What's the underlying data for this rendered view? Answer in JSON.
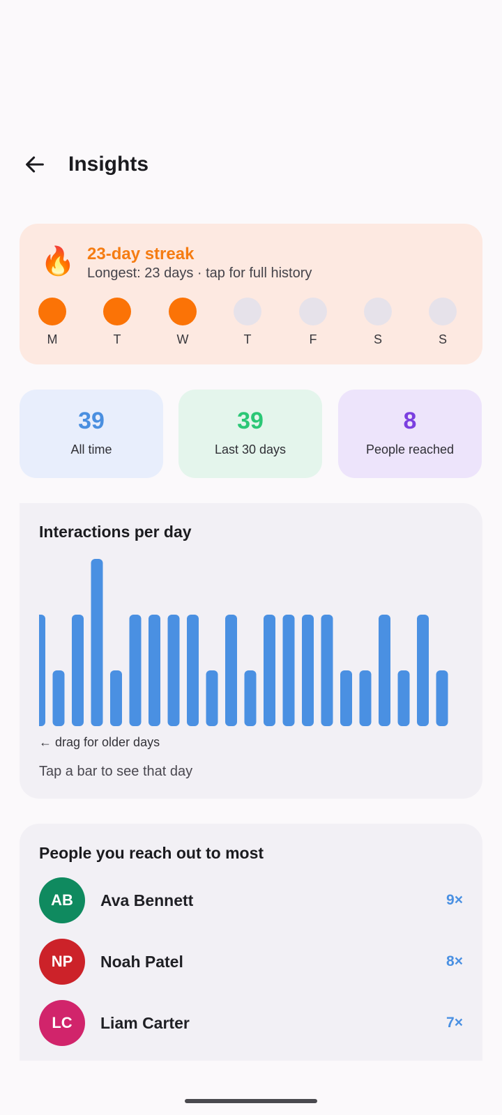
{
  "header": {
    "title": "Insights",
    "back_icon": "arrow-left-icon"
  },
  "streak": {
    "icon": "fire-icon",
    "emoji": "🔥",
    "title": "23-day streak",
    "subtitle": "Longest: 23 days · tap for full history",
    "days": [
      {
        "label": "M",
        "done": true
      },
      {
        "label": "T",
        "done": true
      },
      {
        "label": "W",
        "done": true
      },
      {
        "label": "T",
        "done": false
      },
      {
        "label": "F",
        "done": false
      },
      {
        "label": "S",
        "done": false
      },
      {
        "label": "S",
        "done": false
      }
    ],
    "colors": {
      "active": "#fb7306",
      "inactive": "#e6e2ea",
      "accent": "#f57c12",
      "background": "#fde9e1"
    }
  },
  "stats": [
    {
      "value": "39",
      "label": "All time",
      "color": "#4a8fe0",
      "bg": "#e8eefc"
    },
    {
      "value": "39",
      "label": "Last 30 days",
      "color": "#2bc776",
      "bg": "#e4f5ec"
    },
    {
      "value": "8",
      "label": "People reached",
      "color": "#7b3fe0",
      "bg": "#ede4fb"
    }
  ],
  "chart": {
    "title": "Interactions per day",
    "drag_hint": "← drag for older days",
    "tap_hint": "Tap a bar to see that day"
  },
  "chart_data": {
    "type": "bar",
    "title": "Interactions per day",
    "values": [
      2,
      1,
      2,
      3,
      1,
      2,
      2,
      2,
      2,
      1,
      2,
      1,
      2,
      2,
      2,
      2,
      1,
      1,
      2,
      1,
      2,
      1
    ],
    "ylim": [
      0,
      3
    ],
    "color": "#4a90e2",
    "grid": false
  },
  "people": {
    "title": "People you reach out to most",
    "items": [
      {
        "initials": "AB",
        "name": "Ava Bennett",
        "count": "9×",
        "color": "#0f8a5f"
      },
      {
        "initials": "NP",
        "name": "Noah Patel",
        "count": "8×",
        "color": "#cc2229"
      },
      {
        "initials": "LC",
        "name": "Liam Carter",
        "count": "7×",
        "color": "#d1246b"
      }
    ]
  }
}
